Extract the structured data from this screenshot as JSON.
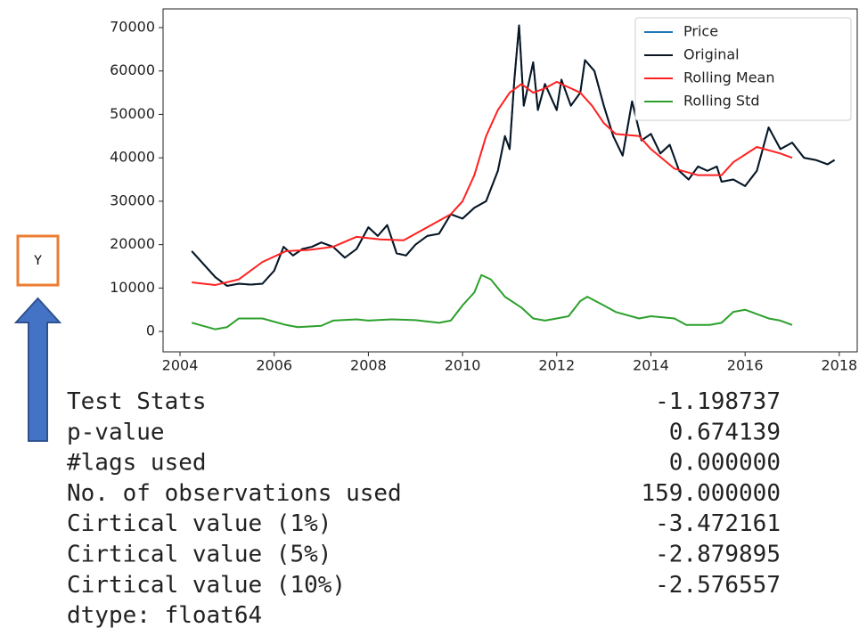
{
  "chart_data": {
    "type": "line",
    "xlim": [
      2003.64,
      2018.4
    ],
    "xticks": [
      2004,
      2006,
      2008,
      2010,
      2012,
      2014,
      2016,
      2018
    ],
    "ylim": [
      -4700,
      74300
    ],
    "yticks": [
      0,
      10000,
      20000,
      30000,
      40000,
      50000,
      60000,
      70000
    ],
    "legend": "upper right",
    "series": [
      {
        "name": "Price",
        "color": "#1f77b4",
        "x": [
          2004.25,
          2004.5,
          2004.75,
          2005.0,
          2005.25,
          2005.5,
          2005.75,
          2006.0,
          2006.2,
          2006.4,
          2006.6,
          2006.8,
          2007.0,
          2007.25,
          2007.5,
          2007.75,
          2008.0,
          2008.2,
          2008.4,
          2008.6,
          2008.8,
          2009.0,
          2009.25,
          2009.5,
          2009.75,
          2010.0,
          2010.25,
          2010.5,
          2010.75,
          2010.9,
          2011.0,
          2011.1,
          2011.2,
          2011.3,
          2011.5,
          2011.6,
          2011.75,
          2012.0,
          2012.1,
          2012.3,
          2012.5,
          2012.6,
          2012.8,
          2013.0,
          2013.2,
          2013.4,
          2013.6,
          2013.8,
          2014.0,
          2014.2,
          2014.4,
          2014.6,
          2014.8,
          2015.0,
          2015.2,
          2015.4,
          2015.5,
          2015.75,
          2016.0,
          2016.25,
          2016.5,
          2016.75,
          2017.0,
          2017.25,
          2017.5,
          2017.75,
          2017.9
        ],
        "values": [
          18500,
          15500,
          12500,
          10500,
          11000,
          10800,
          11000,
          14000,
          19500,
          17500,
          19000,
          19500,
          20500,
          19500,
          17000,
          19000,
          24000,
          22000,
          24500,
          18000,
          17500,
          20000,
          22000,
          22500,
          27000,
          26000,
          28500,
          30000,
          37000,
          45000,
          42000,
          58000,
          70500,
          52000,
          62000,
          51000,
          57000,
          51000,
          58000,
          52000,
          55000,
          62500,
          60000,
          52000,
          45000,
          40500,
          53000,
          44000,
          45500,
          41000,
          43000,
          37000,
          35000,
          38000,
          37000,
          38000,
          34500,
          35000,
          33500,
          37000,
          47000,
          42000,
          43500,
          40000,
          39500,
          38500,
          39500
        ]
      },
      {
        "name": "Original",
        "color": "#0b1622",
        "x": [
          2004.25,
          2004.5,
          2004.75,
          2005.0,
          2005.25,
          2005.5,
          2005.75,
          2006.0,
          2006.2,
          2006.4,
          2006.6,
          2006.8,
          2007.0,
          2007.25,
          2007.5,
          2007.75,
          2008.0,
          2008.2,
          2008.4,
          2008.6,
          2008.8,
          2009.0,
          2009.25,
          2009.5,
          2009.75,
          2010.0,
          2010.25,
          2010.5,
          2010.75,
          2010.9,
          2011.0,
          2011.1,
          2011.2,
          2011.3,
          2011.5,
          2011.6,
          2011.75,
          2012.0,
          2012.1,
          2012.3,
          2012.5,
          2012.6,
          2012.8,
          2013.0,
          2013.2,
          2013.4,
          2013.6,
          2013.8,
          2014.0,
          2014.2,
          2014.4,
          2014.6,
          2014.8,
          2015.0,
          2015.2,
          2015.4,
          2015.5,
          2015.75,
          2016.0,
          2016.25,
          2016.5,
          2016.75,
          2017.0,
          2017.25,
          2017.5,
          2017.75,
          2017.9
        ],
        "values": [
          18500,
          15500,
          12500,
          10500,
          11000,
          10800,
          11000,
          14000,
          19500,
          17500,
          19000,
          19500,
          20500,
          19500,
          17000,
          19000,
          24000,
          22000,
          24500,
          18000,
          17500,
          20000,
          22000,
          22500,
          27000,
          26000,
          28500,
          30000,
          37000,
          45000,
          42000,
          58000,
          70500,
          52000,
          62000,
          51000,
          57000,
          51000,
          58000,
          52000,
          55000,
          62500,
          60000,
          52000,
          45000,
          40500,
          53000,
          44000,
          45500,
          41000,
          43000,
          37000,
          35000,
          38000,
          37000,
          38000,
          34500,
          35000,
          33500,
          37000,
          47000,
          42000,
          43500,
          40000,
          39500,
          38500,
          39500
        ]
      },
      {
        "name": "Rolling Mean",
        "color": "#ff2020",
        "x": [
          2004.25,
          2004.75,
          2005.25,
          2005.75,
          2006.25,
          2006.75,
          2007.25,
          2007.75,
          2008.25,
          2008.75,
          2009.25,
          2009.75,
          2010.0,
          2010.25,
          2010.5,
          2010.75,
          2011.0,
          2011.25,
          2011.5,
          2011.75,
          2012.0,
          2012.5,
          2012.75,
          2013.0,
          2013.25,
          2013.75,
          2014.0,
          2014.5,
          2015.0,
          2015.5,
          2015.75,
          2016.25,
          2016.75,
          2017.0
        ],
        "values": [
          11300,
          10700,
          12000,
          16000,
          18500,
          18800,
          19500,
          21800,
          21200,
          21000,
          24000,
          27000,
          30000,
          36000,
          45000,
          51000,
          55000,
          57000,
          55000,
          56000,
          57500,
          55000,
          52000,
          48000,
          45500,
          45000,
          42000,
          37500,
          36000,
          36000,
          39000,
          42500,
          41000,
          40000
        ]
      },
      {
        "name": "Rolling Std",
        "color": "#2ca02c",
        "x": [
          2004.25,
          2004.75,
          2005.0,
          2005.25,
          2005.75,
          2006.25,
          2006.5,
          2007.0,
          2007.25,
          2007.75,
          2008.0,
          2008.5,
          2009.0,
          2009.5,
          2009.75,
          2010.0,
          2010.25,
          2010.4,
          2010.6,
          2010.9,
          2011.25,
          2011.5,
          2011.75,
          2012.0,
          2012.25,
          2012.5,
          2012.65,
          2013.0,
          2013.25,
          2013.75,
          2014.0,
          2014.5,
          2014.75,
          2015.25,
          2015.5,
          2015.75,
          2016.0,
          2016.5,
          2016.75,
          2017.0
        ],
        "values": [
          2000,
          500,
          1000,
          3000,
          3000,
          1500,
          1000,
          1300,
          2500,
          2800,
          2500,
          2800,
          2600,
          2000,
          2500,
          6000,
          9000,
          13000,
          12000,
          8000,
          5500,
          3000,
          2500,
          3000,
          3500,
          7000,
          8000,
          6000,
          4500,
          3000,
          3500,
          3000,
          1500,
          1500,
          2000,
          4500,
          5000,
          3000,
          2500,
          1500
        ]
      }
    ]
  },
  "side_label": "Y",
  "stats": {
    "rows": [
      [
        "Test Stats",
        "-1.198737"
      ],
      [
        "p-value",
        "0.674139"
      ],
      [
        "#lags used",
        "0.000000"
      ],
      [
        "No. of observations used",
        "159.000000"
      ],
      [
        "Cirtical value (1%)",
        "-3.472161"
      ],
      [
        "Cirtical value (5%)",
        "-2.879895"
      ],
      [
        "Cirtical value (10%)",
        "-2.576557"
      ]
    ],
    "dtype": "dtype: float64"
  }
}
